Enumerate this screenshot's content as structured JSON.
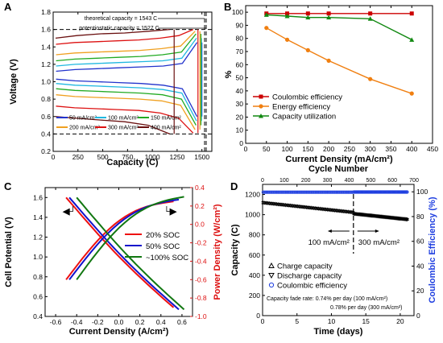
{
  "chart_data": [
    {
      "panel": "A",
      "type": "line",
      "xlabel": "Capacity (C)",
      "ylabel": "Voltage (V)",
      "xlim": [
        0,
        1600
      ],
      "ylim": [
        0.2,
        1.8
      ],
      "x_ticks": [
        0,
        250,
        500,
        750,
        1000,
        1250,
        1500
      ],
      "y_ticks": [
        0.2,
        0.4,
        0.6,
        0.8,
        1.0,
        1.2,
        1.4,
        1.6,
        1.8
      ],
      "reference_lines": [
        {
          "kind": "horizontal",
          "value": 1.6
        },
        {
          "kind": "horizontal",
          "value": 0.4
        },
        {
          "kind": "vertical",
          "value": 1527
        },
        {
          "kind": "vertical",
          "value": 1543
        }
      ],
      "annotations": [
        "theoretical capacity = 1543 C",
        "potentiostatic capacity = 1527 C"
      ],
      "legend_position": "bottom-left",
      "series": [
        {
          "name": "50 mA/cm²",
          "color": "#2233cc",
          "charge_v": [
            1.12,
            1.14,
            1.15,
            1.16,
            1.17,
            1.18,
            1.21,
            1.45
          ],
          "discharge_v": [
            1.03,
            1.01,
            1.0,
            0.99,
            0.98,
            0.96,
            0.92,
            0.6
          ],
          "end_capacity": 1480
        },
        {
          "name": "100 mA/cm²",
          "color": "#20b8e0",
          "charge_v": [
            1.18,
            1.2,
            1.21,
            1.22,
            1.23,
            1.24,
            1.27,
            1.5
          ],
          "discharge_v": [
            0.98,
            0.96,
            0.95,
            0.94,
            0.93,
            0.91,
            0.87,
            0.55
          ],
          "end_capacity": 1475
        },
        {
          "name": "150 mA/cm²",
          "color": "#22aa22",
          "charge_v": [
            1.24,
            1.26,
            1.27,
            1.28,
            1.29,
            1.31,
            1.34,
            1.55
          ],
          "discharge_v": [
            0.92,
            0.9,
            0.89,
            0.88,
            0.87,
            0.85,
            0.8,
            0.5
          ],
          "end_capacity": 1470
        },
        {
          "name": "200 mA/cm²",
          "color": "#f0a020",
          "charge_v": [
            1.31,
            1.33,
            1.34,
            1.35,
            1.36,
            1.38,
            1.41,
            1.58
          ],
          "discharge_v": [
            0.85,
            0.83,
            0.82,
            0.81,
            0.8,
            0.78,
            0.73,
            0.45
          ],
          "end_capacity": 1460
        },
        {
          "name": "300 mA/cm²",
          "color": "#dd1111",
          "charge_v": [
            1.43,
            1.45,
            1.46,
            1.47,
            1.48,
            1.5,
            1.53,
            1.6
          ],
          "discharge_v": [
            0.72,
            0.7,
            0.69,
            0.68,
            0.67,
            0.64,
            0.58,
            0.41
          ],
          "end_capacity": 1440
        },
        {
          "name": "400 mA/cm²",
          "color": "#6a1010",
          "charge_v": [
            1.5,
            1.53,
            1.55,
            1.56,
            1.58,
            1.6
          ],
          "discharge_v": [
            0.6,
            0.58,
            0.56,
            0.54,
            0.5,
            0.4
          ],
          "end_capacity": 1200
        }
      ]
    },
    {
      "panel": "B",
      "type": "line",
      "xlabel": "Current Density (mA/cm²)",
      "ylabel": "%",
      "xlim": [
        0,
        450
      ],
      "ylim": [
        0,
        105
      ],
      "x_ticks": [
        0,
        50,
        100,
        150,
        200,
        250,
        300,
        350,
        400,
        450
      ],
      "y_ticks": [
        0,
        10,
        20,
        30,
        40,
        50,
        60,
        70,
        80,
        90,
        100
      ],
      "categories": [
        50,
        100,
        150,
        200,
        300,
        400
      ],
      "legend_position": "center-left",
      "series": [
        {
          "name": "Coulombic efficiency",
          "color": "#cc0000",
          "marker": "square",
          "values": [
            99,
            99,
            99,
            99,
            99,
            99
          ]
        },
        {
          "name": "Energy efficiency",
          "color": "#f07f10",
          "marker": "circle",
          "values": [
            88,
            79,
            71,
            63,
            49,
            38
          ]
        },
        {
          "name": "Capacity utilization",
          "color": "#118811",
          "marker": "triangle",
          "values": [
            98,
            97,
            96,
            96,
            95,
            79
          ]
        }
      ]
    },
    {
      "panel": "C",
      "type": "line",
      "xlabel": "Current Density (A/cm²)",
      "ylabel": "Cell Potential (V)",
      "y2label": "Power Density (W/cm²)",
      "xlim": [
        -0.7,
        0.7
      ],
      "ylim": [
        0.4,
        1.7
      ],
      "y2lim": [
        -1.0,
        0.4
      ],
      "x_ticks": [
        -0.6,
        -0.4,
        -0.2,
        0.0,
        0.2,
        0.4,
        0.6
      ],
      "y_ticks": [
        0.4,
        0.6,
        0.8,
        1.0,
        1.2,
        1.4,
        1.6
      ],
      "y2_ticks": [
        -1.0,
        -0.8,
        -0.6,
        -0.4,
        -0.2,
        0.0,
        0.2,
        0.4
      ],
      "legend_position": "right",
      "series": [
        {
          "name": "20% SOC",
          "color": "#ee1111",
          "x_min": -0.5,
          "x_max": 0.52,
          "v_at_min": 1.6,
          "v_at_max": 0.49,
          "power_peak": 0.25
        },
        {
          "name": "50% SOC",
          "color": "#1111cc",
          "x_min": -0.47,
          "x_max": 0.57,
          "v_at_min": 1.6,
          "v_at_max": 0.47,
          "power_peak": 0.27
        },
        {
          "name": "~100% SOC",
          "color": "#117711",
          "x_min": -0.4,
          "x_max": 0.62,
          "v_at_min": 1.6,
          "v_at_max": 0.47,
          "power_peak": 0.3
        }
      ]
    },
    {
      "panel": "D",
      "type": "scatter",
      "xlabel": "Time (days)",
      "x2label": "Cycle Number",
      "ylabel": "Capacity (C)",
      "y2label": "Coulombic Efficiency (%)",
      "xlim": [
        0,
        22
      ],
      "x2lim": [
        0,
        700
      ],
      "ylim": [
        0,
        1300
      ],
      "y2lim": [
        0,
        106
      ],
      "x_ticks": [
        0,
        5,
        10,
        15,
        20
      ],
      "x2_ticks": [
        0,
        100,
        200,
        300,
        400,
        500,
        600,
        700
      ],
      "y_ticks": [
        0,
        200,
        400,
        600,
        800,
        1000,
        1200
      ],
      "y2_ticks": [
        0,
        20,
        40,
        60,
        80,
        100
      ],
      "divider_day": 13.2,
      "annotations": [
        "100 mA/cm²",
        "300 mA/cm²",
        "Capacity fade rate: 0.74% per day (100 mA/cm²)",
        "0.78% per day (300 mA/cm²)"
      ],
      "legend_position": "bottom-left",
      "series": [
        {
          "name": "Charge capacity",
          "marker": "triangle-up",
          "segments": [
            [
              0.1,
              13.1,
              1120,
              1025
            ],
            [
              13.3,
              21,
              1010,
              955
            ]
          ]
        },
        {
          "name": "Discharge capacity",
          "marker": "triangle-down",
          "segments": [
            [
              0.1,
              13.1,
              1118,
              1022
            ],
            [
              13.3,
              21,
              1008,
              952
            ]
          ]
        },
        {
          "name": "Coulombic efficiency",
          "marker": "circle",
          "color": "#1f3fe0",
          "segments": [
            [
              0.1,
              13.1,
              99.7,
              99.7
            ],
            [
              13.3,
              21,
              99.8,
              99.8
            ]
          ]
        }
      ]
    }
  ]
}
